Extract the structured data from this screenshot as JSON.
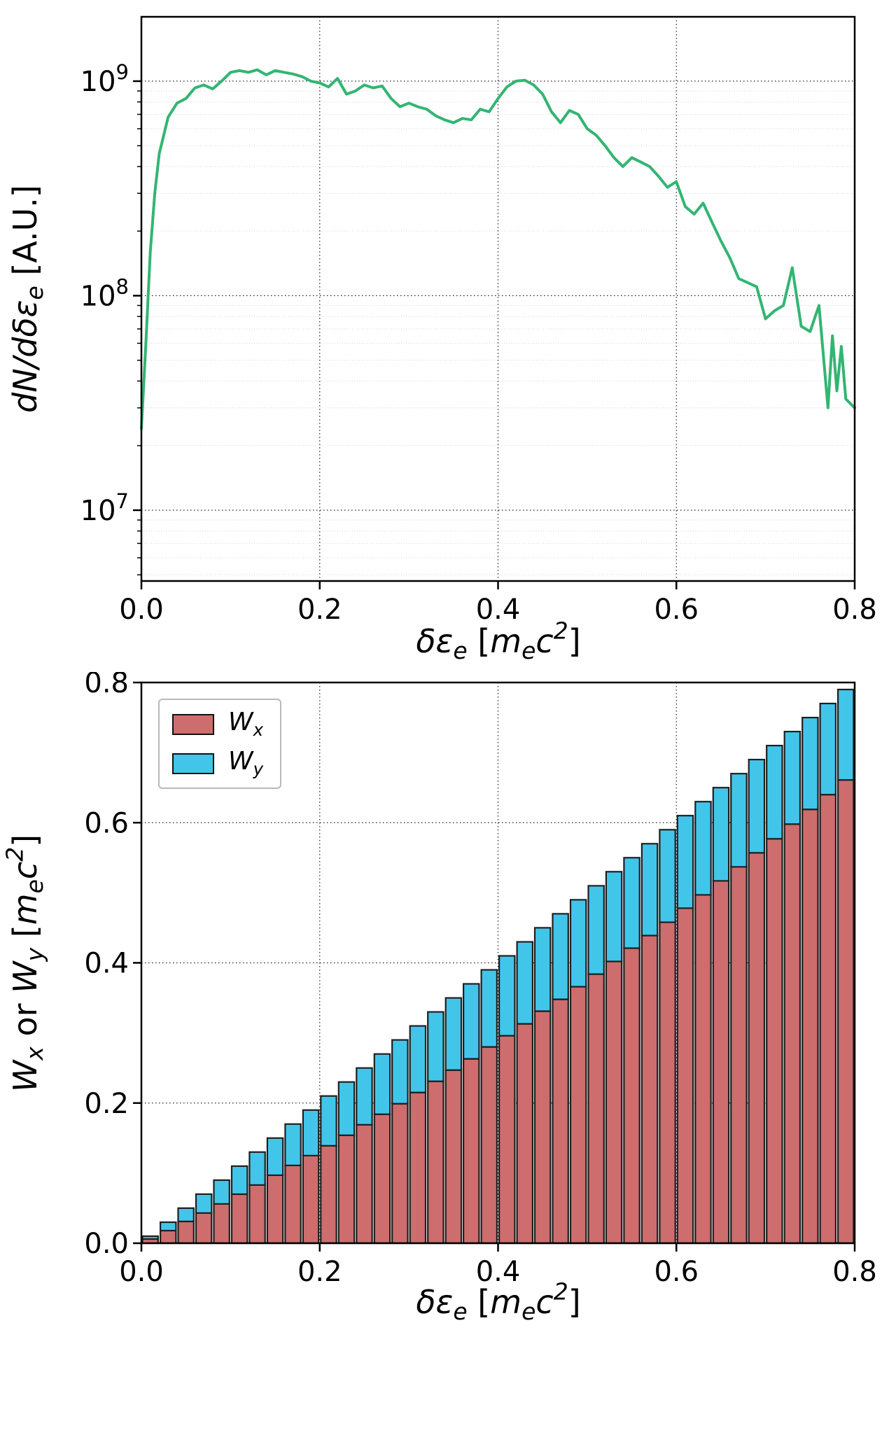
{
  "figure": {
    "background": "#ffffff"
  },
  "chart_data": [
    {
      "type": "line",
      "title": "",
      "xlabel": "δεₑ [mₑc²]",
      "ylabel": "dN/dδεₑ [A.U.]",
      "xlabel_parts": [
        [
          "δε",
          ""
        ],
        [
          "e",
          "sub"
        ],
        [
          " [",
          "rm"
        ],
        [
          "m",
          ""
        ],
        [
          "e",
          "sub"
        ],
        [
          "c",
          ""
        ],
        [
          "2",
          "sup"
        ],
        [
          "]",
          "rm"
        ]
      ],
      "ylabel_parts": [
        [
          "dN/dδε",
          ""
        ],
        [
          "e",
          "sub"
        ],
        [
          " [A.U.]",
          "rm"
        ]
      ],
      "line_color": "#33b573",
      "grid": "dotted",
      "legend_position": "none",
      "xlim": [
        0.0,
        0.8
      ],
      "ylog": true,
      "log_ylim": [
        6.67,
        9.3
      ],
      "ytick_exponents": [
        7,
        8,
        9
      ],
      "xticks": [
        0.0,
        0.2,
        0.4,
        0.6,
        0.8
      ],
      "xtick_labels": [
        "0.0",
        "0.2",
        "0.4",
        "0.6",
        "0.8"
      ],
      "x": [
        0.0,
        0.005,
        0.01,
        0.015,
        0.02,
        0.03,
        0.04,
        0.05,
        0.06,
        0.07,
        0.08,
        0.09,
        0.1,
        0.11,
        0.12,
        0.13,
        0.14,
        0.15,
        0.16,
        0.17,
        0.18,
        0.19,
        0.2,
        0.21,
        0.22,
        0.23,
        0.24,
        0.25,
        0.26,
        0.27,
        0.28,
        0.29,
        0.3,
        0.31,
        0.32,
        0.33,
        0.34,
        0.35,
        0.36,
        0.37,
        0.38,
        0.39,
        0.4,
        0.41,
        0.42,
        0.43,
        0.44,
        0.45,
        0.46,
        0.47,
        0.48,
        0.49,
        0.5,
        0.51,
        0.52,
        0.53,
        0.54,
        0.55,
        0.56,
        0.57,
        0.58,
        0.59,
        0.6,
        0.61,
        0.62,
        0.63,
        0.64,
        0.65,
        0.66,
        0.67,
        0.68,
        0.69,
        0.7,
        0.71,
        0.72,
        0.73,
        0.74,
        0.75,
        0.76,
        0.77,
        0.775,
        0.78,
        0.785,
        0.79,
        0.8
      ],
      "y": [
        24000000.0,
        60000000.0,
        160000000.0,
        300000000.0,
        460000000.0,
        680000000.0,
        790000000.0,
        830000000.0,
        930000000.0,
        960000000.0,
        920000000.0,
        1000000000.0,
        1100000000.0,
        1120000000.0,
        1100000000.0,
        1130000000.0,
        1070000000.0,
        1120000000.0,
        1100000000.0,
        1080000000.0,
        1050000000.0,
        1000000000.0,
        980000000.0,
        940000000.0,
        1030000000.0,
        870000000.0,
        900000000.0,
        960000000.0,
        930000000.0,
        950000000.0,
        830000000.0,
        760000000.0,
        790000000.0,
        760000000.0,
        740000000.0,
        690000000.0,
        660000000.0,
        640000000.0,
        670000000.0,
        660000000.0,
        740000000.0,
        720000000.0,
        830000000.0,
        940000000.0,
        1000000000.0,
        1010000000.0,
        960000000.0,
        870000000.0,
        720000000.0,
        640000000.0,
        730000000.0,
        700000000.0,
        600000000.0,
        560000000.0,
        500000000.0,
        440000000.0,
        400000000.0,
        440000000.0,
        420000000.0,
        400000000.0,
        360000000.0,
        320000000.0,
        340000000.0,
        260000000.0,
        240000000.0,
        270000000.0,
        220000000.0,
        180000000.0,
        150000000.0,
        120000000.0,
        115000000.0,
        110000000.0,
        78000000.0,
        85000000.0,
        90000000.0,
        135000000.0,
        72000000.0,
        68000000.0,
        90000000.0,
        30000000.0,
        65000000.0,
        36000000.0,
        58000000.0,
        33000000.0,
        30000000.0
      ]
    },
    {
      "type": "bar-stacked",
      "title": "",
      "xlabel": "δεₑ [mₑc²]",
      "ylabel": "Wₓ or Wy [mₑc²]",
      "xlabel_parts": [
        [
          "δε",
          ""
        ],
        [
          "e",
          "sub"
        ],
        [
          " [",
          "rm"
        ],
        [
          "m",
          ""
        ],
        [
          "e",
          "sub"
        ],
        [
          "c",
          ""
        ],
        [
          "2",
          "sup"
        ],
        [
          "]",
          "rm"
        ]
      ],
      "ylabel_parts": [
        [
          "W",
          ""
        ],
        [
          "x",
          "sub"
        ],
        [
          " or ",
          "rm"
        ],
        [
          "W",
          ""
        ],
        [
          "y",
          "sub"
        ],
        [
          " [",
          "rm"
        ],
        [
          "m",
          ""
        ],
        [
          "e",
          "sub"
        ],
        [
          "c",
          ""
        ],
        [
          "2",
          "sup"
        ],
        [
          "]",
          "rm"
        ]
      ],
      "grid": "dotted",
      "legend_position": "upper left",
      "edge_color": "#1f1f1f",
      "xlim": [
        0.0,
        0.8
      ],
      "ylim": [
        0.0,
        0.8
      ],
      "xticks": [
        0.0,
        0.2,
        0.4,
        0.6,
        0.8
      ],
      "xtick_labels": [
        "0.0",
        "0.2",
        "0.4",
        "0.6",
        "0.8"
      ],
      "yticks": [
        0.0,
        0.2,
        0.4,
        0.6,
        0.8
      ],
      "ytick_labels": [
        "0.0",
        "0.2",
        "0.4",
        "0.6",
        "0.8"
      ],
      "bar_width": 0.0175,
      "categories": [
        0.01,
        0.03,
        0.05,
        0.07,
        0.09,
        0.11,
        0.13,
        0.15,
        0.17,
        0.19,
        0.21,
        0.23,
        0.25,
        0.27,
        0.29,
        0.31,
        0.33,
        0.35,
        0.37,
        0.39,
        0.41,
        0.43,
        0.45,
        0.47,
        0.49,
        0.51,
        0.53,
        0.55,
        0.57,
        0.59,
        0.61,
        0.63,
        0.65,
        0.67,
        0.69,
        0.71,
        0.73,
        0.75,
        0.77,
        0.79
      ],
      "series": [
        {
          "name": "Wx",
          "label_base": "W",
          "label_sub": "x",
          "color": "#cd6d6d",
          "values": [
            0.006,
            0.018,
            0.031,
            0.043,
            0.056,
            0.07,
            0.083,
            0.097,
            0.111,
            0.125,
            0.139,
            0.154,
            0.169,
            0.184,
            0.199,
            0.215,
            0.231,
            0.247,
            0.263,
            0.28,
            0.296,
            0.313,
            0.331,
            0.348,
            0.366,
            0.384,
            0.402,
            0.421,
            0.439,
            0.458,
            0.478,
            0.497,
            0.517,
            0.537,
            0.557,
            0.577,
            0.598,
            0.619,
            0.64,
            0.661
          ]
        },
        {
          "name": "Wy",
          "label_base": "W",
          "label_sub": "y",
          "color": "#41c6ea",
          "values": [
            0.004,
            0.012,
            0.019,
            0.027,
            0.034,
            0.04,
            0.047,
            0.053,
            0.059,
            0.065,
            0.071,
            0.076,
            0.081,
            0.086,
            0.091,
            0.095,
            0.099,
            0.103,
            0.107,
            0.11,
            0.114,
            0.117,
            0.119,
            0.122,
            0.124,
            0.126,
            0.128,
            0.129,
            0.131,
            0.132,
            0.132,
            0.133,
            0.133,
            0.133,
            0.133,
            0.133,
            0.132,
            0.131,
            0.13,
            0.129
          ]
        }
      ]
    }
  ]
}
